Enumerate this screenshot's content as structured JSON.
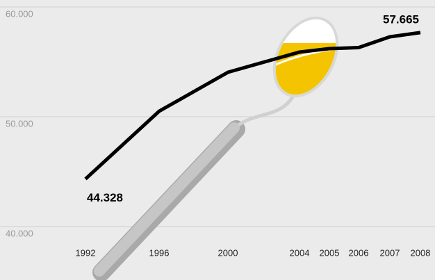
{
  "chart_data": {
    "type": "line",
    "categories": [
      "1992",
      "1996",
      "2000",
      "2004",
      "2005",
      "2006",
      "2007",
      "2008"
    ],
    "series": [
      {
        "color": "#000000",
        "values": [
          44328,
          50500,
          54050,
          55890,
          56200,
          56300,
          57280,
          57665
        ],
        "value_labels": [
          "44.328",
          null,
          null,
          null,
          null,
          null,
          null,
          "57.665"
        ]
      }
    ],
    "ylim": [
      35127,
      60633
    ],
    "yticks": [
      {
        "value": 40000,
        "label": "40.000"
      },
      {
        "value": 50000,
        "label": "50.000"
      },
      {
        "value": 60000,
        "label": "60.000"
      }
    ],
    "grid": true
  }
}
